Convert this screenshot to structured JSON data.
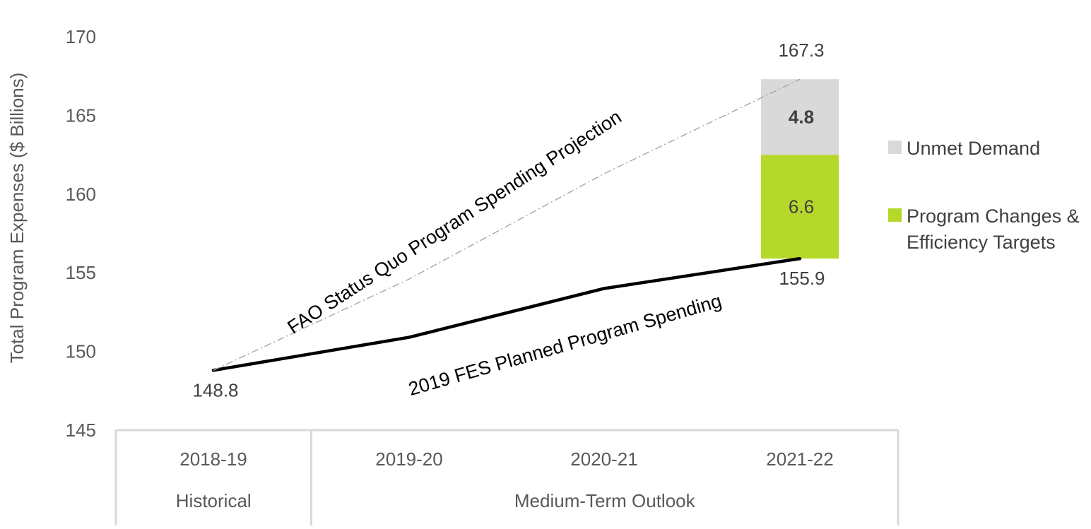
{
  "chart_data": {
    "type": "line",
    "ylabel": "Total Program Expenses ($ Billions)",
    "ylim": [
      145,
      170
    ],
    "y_ticks": [
      "145",
      "150",
      "155",
      "160",
      "165",
      "170"
    ],
    "categories": [
      "2018-19",
      "2019-20",
      "2020-21",
      "2021-22"
    ],
    "category_groups": [
      {
        "label": "Historical",
        "categories": [
          "2018-19"
        ]
      },
      {
        "label": "Medium-Term Outlook",
        "categories": [
          "2019-20",
          "2020-21",
          "2021-22"
        ]
      }
    ],
    "series": [
      {
        "key": "fes",
        "values": [
          148.8,
          150.9,
          154.0,
          155.9
        ],
        "color": "#000000",
        "style": "solid"
      },
      {
        "key": "fao",
        "values": [
          148.8,
          154.6,
          161.3,
          167.3
        ],
        "color": "#a6a6a6",
        "style": "dashed"
      }
    ],
    "stacked_bar": {
      "category": "2021-22",
      "base": 155.9,
      "segments": [
        {
          "name": "Program Changes & Efficiency Targets",
          "value": 6.6,
          "label": "6.6",
          "color": "#b5d82a"
        },
        {
          "name": "Unmet Demand",
          "value": 4.8,
          "label": "4.8",
          "color": "#d9d9d9"
        }
      ]
    },
    "data_labels": [
      {
        "text": "148.8",
        "category": "2018-19",
        "value": 148.8,
        "placement": "below"
      },
      {
        "text": "155.9",
        "category": "2021-22",
        "value": 155.9,
        "placement": "below"
      },
      {
        "text": "167.3",
        "category": "2021-22",
        "value": 167.3,
        "placement": "above"
      }
    ],
    "annotations": {
      "fao_line": "FAO Status Quo Program Spending Projection",
      "fes_line": "2019 FES Planned Program Spending"
    },
    "legend": {
      "placement": "right",
      "items": [
        {
          "label_lines": [
            "Unmet Demand"
          ],
          "color": "#d9d9d9"
        },
        {
          "label_lines": [
            "Program Changes &",
            "Efficiency Targets"
          ],
          "color": "#b5d82a"
        }
      ]
    },
    "grid": false
  }
}
